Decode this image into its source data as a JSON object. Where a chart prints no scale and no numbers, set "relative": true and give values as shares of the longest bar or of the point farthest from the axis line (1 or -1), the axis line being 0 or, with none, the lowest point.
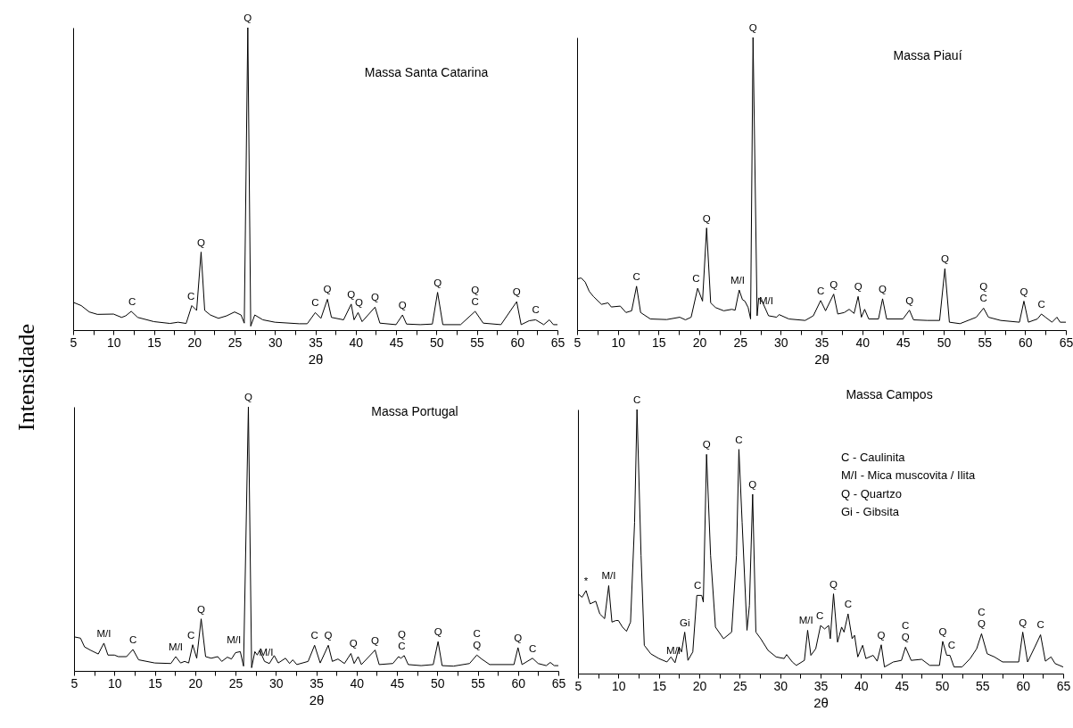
{
  "chart_data": [
    {
      "type": "line",
      "title": "Massa Santa Catarina",
      "xlabel": "2θ",
      "ylabel": "Intensidade",
      "relative": true,
      "xlim": [
        5,
        65
      ],
      "xticks": [
        5,
        {
          "value": 7.5,
          "label": null
        },
        10,
        {
          "value": 12.5,
          "label": null
        },
        15,
        {
          "value": 17.5,
          "label": null
        },
        20,
        {
          "value": 22.5,
          "label": null
        },
        25,
        {
          "value": 27.5,
          "label": null
        },
        30,
        {
          "value": 32.5,
          "label": null
        },
        35,
        {
          "value": 37.5,
          "label": null
        },
        40,
        {
          "value": 42.5,
          "label": null
        },
        45,
        {
          "value": 47.5,
          "label": null
        },
        50,
        {
          "value": 52.5,
          "label": null
        },
        55,
        {
          "value": 57.5,
          "label": null
        },
        60,
        {
          "value": 62.5,
          "label": null
        },
        65
      ],
      "series": [
        {
          "color": "#000000",
          "x": [
            5,
            6,
            7,
            8,
            10,
            11,
            11.5,
            12.2,
            13,
            15,
            17,
            18,
            19,
            19.7,
            20.3,
            20.85,
            21.3,
            22,
            23,
            24,
            25,
            25.8,
            26.2,
            26.64,
            27,
            27.5,
            28.5,
            30,
            33,
            34,
            35,
            35.7,
            36.5,
            37,
            38.5,
            39.45,
            39.8,
            40.3,
            40.8,
            42.4,
            43,
            45,
            45.8,
            46.3,
            48,
            49.5,
            50.15,
            50.8,
            53,
            54.8,
            55.8,
            58,
            59.95,
            60.5,
            61.5,
            62.3,
            63.3,
            64,
            64.5,
            65
          ],
          "values": [
            0.092,
            0.081,
            0.06,
            0.052,
            0.053,
            0.042,
            0.047,
            0.062,
            0.042,
            0.028,
            0.022,
            0.026,
            0.022,
            0.081,
            0.065,
            0.258,
            0.065,
            0.05,
            0.039,
            0.047,
            0.06,
            0.05,
            0.023,
            1.0,
            0.013,
            0.05,
            0.034,
            0.026,
            0.021,
            0.021,
            0.058,
            0.039,
            0.102,
            0.042,
            0.034,
            0.086,
            0.034,
            0.058,
            0.028,
            0.076,
            0.023,
            0.018,
            0.05,
            0.02,
            0.018,
            0.02,
            0.125,
            0.018,
            0.018,
            0.062,
            0.023,
            0.018,
            0.094,
            0.018,
            0.031,
            0.034,
            0.018,
            0.034,
            0.018,
            0.018
          ]
        }
      ],
      "annotations": [
        {
          "text": "C",
          "x": 12.3,
          "y": 0.062
        },
        {
          "text": "C",
          "x": 19.6,
          "y": 0.081
        },
        {
          "text": "Q",
          "x": 20.85,
          "y": 0.258
        },
        {
          "text": "Q",
          "x": 26.64,
          "y": 1.0
        },
        {
          "text": "C",
          "x": 35,
          "y": 0.058
        },
        {
          "text": "Q",
          "x": 36.5,
          "y": 0.102
        },
        {
          "text": "Q",
          "x": 39.45,
          "y": 0.086
        },
        {
          "text": "Q",
          "x": 40.4,
          "y": 0.058
        },
        {
          "text": "Q",
          "x": 42.4,
          "y": 0.076
        },
        {
          "text": "Q",
          "x": 45.8,
          "y": 0.05
        },
        {
          "text": "Q",
          "x": 50.15,
          "y": 0.125
        },
        {
          "text": "C",
          "x": 54.8,
          "y": 0.062
        },
        {
          "text": "Q",
          "x": 54.8,
          "y": 0.062
        },
        {
          "text": "Q",
          "x": 59.95,
          "y": 0.094
        },
        {
          "text": "C",
          "x": 62.3,
          "y": 0.034
        }
      ]
    },
    {
      "type": "line",
      "title": "Massa Piauí",
      "xlabel": "2θ",
      "relative": true,
      "xlim": [
        5,
        65
      ],
      "xticks": [
        5,
        {
          "value": 7.5,
          "label": null
        },
        10,
        {
          "value": 12.5,
          "label": null
        },
        15,
        {
          "value": 17.5,
          "label": null
        },
        20,
        {
          "value": 22.5,
          "label": null
        },
        25,
        {
          "value": 27.5,
          "label": null
        },
        30,
        {
          "value": 32.5,
          "label": null
        },
        35,
        {
          "value": 37.5,
          "label": null
        },
        40,
        {
          "value": 42.5,
          "label": null
        },
        45,
        {
          "value": 47.5,
          "label": null
        },
        50,
        {
          "value": 52.5,
          "label": null
        },
        55,
        {
          "value": 57.5,
          "label": null
        },
        60,
        {
          "value": 62.5,
          "label": null
        },
        65
      ],
      "series": [
        {
          "color": "#000000",
          "x": [
            5,
            5.5,
            6,
            6.5,
            7,
            8,
            8.8,
            9.2,
            10.3,
            11,
            11.7,
            12.3,
            12.8,
            14,
            16,
            17.6,
            18.3,
            19,
            19.8,
            20.4,
            20.9,
            21.4,
            22,
            23,
            24,
            24.4,
            24.9,
            25.3,
            25.6,
            26,
            26.3,
            26.6,
            27.1,
            27.3,
            27.8,
            28.5,
            29.5,
            29.8,
            31,
            33,
            34,
            34.9,
            35.5,
            36.5,
            37,
            37.8,
            38.4,
            39,
            39.5,
            39.9,
            40.3,
            40.8,
            42,
            42.5,
            43,
            45,
            45.8,
            46.3,
            48,
            49.5,
            50.15,
            50.7,
            52,
            54,
            54.9,
            55.5,
            57,
            59.3,
            59.85,
            60.4,
            61.5,
            62,
            62.5,
            63.3,
            63.9,
            64.3,
            65
          ],
          "values": [
            0.175,
            0.178,
            0.164,
            0.132,
            0.115,
            0.088,
            0.093,
            0.079,
            0.082,
            0.06,
            0.066,
            0.15,
            0.06,
            0.038,
            0.036,
            0.044,
            0.035,
            0.044,
            0.143,
            0.099,
            0.349,
            0.093,
            0.077,
            0.066,
            0.071,
            0.068,
            0.137,
            0.104,
            0.099,
            0.077,
            0.038,
            1.0,
            0.049,
            0.11,
            0.093,
            0.049,
            0.044,
            0.053,
            0.038,
            0.033,
            0.049,
            0.101,
            0.066,
            0.123,
            0.055,
            0.06,
            0.071,
            0.057,
            0.115,
            0.044,
            0.071,
            0.038,
            0.038,
            0.107,
            0.038,
            0.038,
            0.068,
            0.035,
            0.033,
            0.033,
            0.21,
            0.027,
            0.022,
            0.044,
            0.075,
            0.044,
            0.033,
            0.027,
            0.099,
            0.027,
            0.038,
            0.055,
            0.044,
            0.027,
            0.044,
            0.027,
            0.027
          ]
        }
      ],
      "annotations": [
        {
          "text": "C",
          "x": 12.3,
          "y": 0.15
        },
        {
          "text": "C",
          "x": 19.6,
          "y": 0.143
        },
        {
          "text": "Q",
          "x": 20.9,
          "y": 0.349
        },
        {
          "text": "M/I",
          "x": 24.7,
          "y": 0.137
        },
        {
          "text": "Q",
          "x": 26.6,
          "y": 1.0
        },
        {
          "text": "M/I",
          "x": 28.2,
          "y": 0.068
        },
        {
          "text": "C",
          "x": 34.9,
          "y": 0.101
        },
        {
          "text": "Q",
          "x": 36.5,
          "y": 0.123
        },
        {
          "text": "Q",
          "x": 39.5,
          "y": 0.115
        },
        {
          "text": "Q",
          "x": 42.5,
          "y": 0.107
        },
        {
          "text": "Q",
          "x": 45.8,
          "y": 0.068
        },
        {
          "text": "Q",
          "x": 50.15,
          "y": 0.21
        },
        {
          "text": "C",
          "x": 54.9,
          "y": 0.075
        },
        {
          "text": "Q",
          "x": 54.9,
          "y": 0.075
        },
        {
          "text": "Q",
          "x": 59.85,
          "y": 0.099
        },
        {
          "text": "C",
          "x": 62,
          "y": 0.055
        }
      ]
    },
    {
      "type": "line",
      "title": "Massa Portugal",
      "xlabel": "2θ",
      "relative": true,
      "xlim": [
        5,
        65
      ],
      "xticks": [
        5,
        {
          "value": 7.5,
          "label": null
        },
        10,
        {
          "value": 12.5,
          "label": null
        },
        15,
        {
          "value": 17.5,
          "label": null
        },
        20,
        {
          "value": 22.5,
          "label": null
        },
        25,
        {
          "value": 27.5,
          "label": null
        },
        30,
        {
          "value": 32.5,
          "label": null
        },
        35,
        {
          "value": 37.5,
          "label": null
        },
        40,
        {
          "value": 42.5,
          "label": null
        },
        45,
        {
          "value": 47.5,
          "label": null
        },
        50,
        {
          "value": 52.5,
          "label": null
        },
        55,
        {
          "value": 57.5,
          "label": null
        },
        60,
        {
          "value": 62.5,
          "label": null
        },
        65
      ],
      "series": [
        {
          "color": "#000000",
          "x": [
            5,
            5.8,
            6.3,
            7,
            8,
            8.7,
            9.2,
            10,
            10.5,
            11.5,
            12.3,
            13,
            15,
            17,
            17.6,
            18.2,
            18.7,
            19.2,
            19.7,
            20.2,
            20.75,
            21.3,
            22,
            22.8,
            23.3,
            24,
            24.5,
            25,
            25.6,
            26,
            26.6,
            27,
            27.4,
            27.7,
            28,
            28.6,
            29.2,
            29.8,
            30.3,
            31.2,
            31.7,
            32.1,
            32.6,
            34,
            34.8,
            35.5,
            36.5,
            37,
            37.7,
            38.5,
            39.3,
            39.7,
            40.2,
            40.6,
            42.3,
            42.8,
            44.5,
            45.2,
            45.5,
            45.9,
            46.4,
            48,
            49.5,
            50.1,
            50.6,
            52,
            54,
            54.9,
            55.5,
            56.5,
            59.5,
            60,
            60.5,
            61.8,
            62.5,
            63.5,
            64,
            64.5,
            65
          ],
          "values": [
            0.129,
            0.124,
            0.091,
            0.079,
            0.064,
            0.105,
            0.06,
            0.06,
            0.054,
            0.054,
            0.081,
            0.042,
            0.03,
            0.028,
            0.054,
            0.03,
            0.036,
            0.03,
            0.099,
            0.048,
            0.197,
            0.054,
            0.048,
            0.054,
            0.036,
            0.052,
            0.045,
            0.069,
            0.073,
            0.018,
            1.0,
            0.012,
            0.073,
            0.06,
            0.078,
            0.036,
            0.028,
            0.058,
            0.03,
            0.048,
            0.028,
            0.042,
            0.024,
            0.036,
            0.097,
            0.03,
            0.097,
            0.036,
            0.045,
            0.028,
            0.066,
            0.028,
            0.054,
            0.024,
            0.079,
            0.024,
            0.028,
            0.054,
            0.048,
            0.058,
            0.024,
            0.02,
            0.024,
            0.111,
            0.02,
            0.018,
            0.028,
            0.06,
            0.045,
            0.024,
            0.024,
            0.088,
            0.024,
            0.048,
            0.028,
            0.02,
            0.032,
            0.02,
            0.02
          ]
        }
      ],
      "annotations": [
        {
          "text": "M/I",
          "x": 8.7,
          "y": 0.105
        },
        {
          "text": "C",
          "x": 12.3,
          "y": 0.081
        },
        {
          "text": "M/I",
          "x": 17.6,
          "y": 0.054
        },
        {
          "text": "C",
          "x": 19.5,
          "y": 0.099
        },
        {
          "text": "Q",
          "x": 20.75,
          "y": 0.197
        },
        {
          "text": "M/I",
          "x": 24.8,
          "y": 0.08
        },
        {
          "text": "Q",
          "x": 26.6,
          "y": 1.0
        },
        {
          "text": "M/I",
          "x": 28.8,
          "y": 0.033
        },
        {
          "text": "C",
          "x": 34.8,
          "y": 0.097
        },
        {
          "text": "Q",
          "x": 36.5,
          "y": 0.097
        },
        {
          "text": "Q",
          "x": 39.6,
          "y": 0.066
        },
        {
          "text": "Q",
          "x": 42.3,
          "y": 0.079
        },
        {
          "text": "C",
          "x": 45.6,
          "y": 0.058
        },
        {
          "text": "Q",
          "x": 45.6,
          "y": 0.058
        },
        {
          "text": "Q",
          "x": 50.1,
          "y": 0.111
        },
        {
          "text": "Q",
          "x": 54.9,
          "y": 0.06
        },
        {
          "text": "C",
          "x": 54.9,
          "y": 0.06
        },
        {
          "text": "Q",
          "x": 60,
          "y": 0.088
        },
        {
          "text": "C",
          "x": 61.8,
          "y": 0.048
        }
      ]
    },
    {
      "type": "line",
      "title": "Massa Campos",
      "xlabel": "2θ",
      "relative": true,
      "xlim": [
        5,
        65
      ],
      "xticks": [
        5,
        {
          "value": 7.5,
          "label": null
        },
        10,
        {
          "value": 12.5,
          "label": null
        },
        15,
        {
          "value": 17.5,
          "label": null
        },
        20,
        {
          "value": 22.5,
          "label": null
        },
        25,
        {
          "value": 27.5,
          "label": null
        },
        30,
        {
          "value": 32.5,
          "label": null
        },
        35,
        {
          "value": 37.5,
          "label": null
        },
        40,
        {
          "value": 42.5,
          "label": null
        },
        45,
        {
          "value": 47.5,
          "label": null
        },
        50,
        {
          "value": 52.5,
          "label": null
        },
        55,
        {
          "value": 57.5,
          "label": null
        },
        60,
        {
          "value": 62.5,
          "label": null
        },
        65
      ],
      "series": [
        {
          "color": "#000000",
          "x": [
            5,
            5.5,
            6,
            6.5,
            7.2,
            7.7,
            8.3,
            8.8,
            9.2,
            9.7,
            10,
            10.5,
            11,
            11.5,
            12,
            12.3,
            12.8,
            13.2,
            14,
            15,
            16,
            16.5,
            17,
            17.5,
            17.8,
            18.2,
            18.6,
            19.2,
            19.7,
            20.3,
            20.5,
            20.9,
            21.4,
            22,
            23,
            24,
            24.6,
            24.9,
            25.3,
            25.9,
            26.2,
            26.6,
            27,
            27.6,
            28.5,
            29.5,
            30.5,
            30.8,
            31.5,
            32,
            33,
            33.4,
            33.8,
            34.4,
            35,
            35.5,
            36,
            36.2,
            36.6,
            37.1,
            37.6,
            37.9,
            38.4,
            38.9,
            39.2,
            39.6,
            40.2,
            40.6,
            41.5,
            42,
            42.5,
            42.9,
            44,
            45,
            45.5,
            46.2,
            47.5,
            48.5,
            49.7,
            50.1,
            50.6,
            51,
            51.5,
            52.5,
            53.5,
            54.3,
            54.9,
            55.6,
            56.5,
            57.5,
            59.5,
            60,
            60.6,
            61.5,
            62.2,
            62.8,
            63.5,
            64,
            65
          ],
          "values": [
            0.302,
            0.289,
            0.314,
            0.264,
            0.274,
            0.226,
            0.208,
            0.333,
            0.195,
            0.201,
            0.201,
            0.176,
            0.16,
            0.195,
            0.572,
            1.0,
            0.447,
            0.107,
            0.075,
            0.057,
            0.044,
            0.063,
            0.041,
            0.101,
            0.082,
            0.157,
            0.05,
            0.082,
            0.296,
            0.296,
            0.271,
            0.83,
            0.447,
            0.176,
            0.132,
            0.157,
            0.447,
            0.849,
            0.572,
            0.164,
            0.258,
            0.679,
            0.157,
            0.132,
            0.088,
            0.063,
            0.057,
            0.072,
            0.044,
            0.031,
            0.05,
            0.164,
            0.069,
            0.094,
            0.182,
            0.169,
            0.182,
            0.132,
            0.302,
            0.119,
            0.176,
            0.157,
            0.226,
            0.132,
            0.145,
            0.063,
            0.107,
            0.057,
            0.069,
            0.047,
            0.109,
            0.025,
            0.044,
            0.05,
            0.1,
            0.05,
            0.054,
            0.031,
            0.031,
            0.122,
            0.069,
            0.069,
            0.025,
            0.025,
            0.057,
            0.094,
            0.151,
            0.075,
            0.063,
            0.044,
            0.044,
            0.157,
            0.044,
            0.101,
            0.147,
            0.047,
            0.063,
            0.038,
            0.025
          ]
        }
      ],
      "annotations": [
        {
          "text": "*",
          "x": 6,
          "y": 0.314
        },
        {
          "text": "M/I",
          "x": 8.8,
          "y": 0.333
        },
        {
          "text": "C",
          "x": 12.3,
          "y": 1.0
        },
        {
          "text": "M/I",
          "x": 16.8,
          "y": 0.05
        },
        {
          "text": "Gi",
          "x": 18.2,
          "y": 0.157
        },
        {
          "text": "C",
          "x": 19.8,
          "y": 0.296
        },
        {
          "text": "Q",
          "x": 20.9,
          "y": 0.83
        },
        {
          "text": "C",
          "x": 24.9,
          "y": 0.849
        },
        {
          "text": "Q",
          "x": 26.6,
          "y": 0.679
        },
        {
          "text": "M/I",
          "x": 33.2,
          "y": 0.164
        },
        {
          "text": "C",
          "x": 34.9,
          "y": 0.182
        },
        {
          "text": "Q",
          "x": 36.6,
          "y": 0.302
        },
        {
          "text": "C",
          "x": 38.4,
          "y": 0.226
        },
        {
          "text": "Q",
          "x": 42.5,
          "y": 0.109
        },
        {
          "text": "Q",
          "x": 45.5,
          "y": 0.1
        },
        {
          "text": "C",
          "x": 45.5,
          "y": 0.1
        },
        {
          "text": "Q",
          "x": 50.1,
          "y": 0.122
        },
        {
          "text": "C",
          "x": 51.2,
          "y": 0.07
        },
        {
          "text": "Q",
          "x": 54.9,
          "y": 0.151
        },
        {
          "text": "C",
          "x": 54.9,
          "y": 0.151
        },
        {
          "text": "Q",
          "x": 60,
          "y": 0.157
        },
        {
          "text": "C",
          "x": 62.2,
          "y": 0.147
        },
        "C - Caulinita",
        "M/I - Mica muscovita / Ilita",
        "Q - Quartzo",
        "Gi - Gibsita"
      ]
    }
  ]
}
